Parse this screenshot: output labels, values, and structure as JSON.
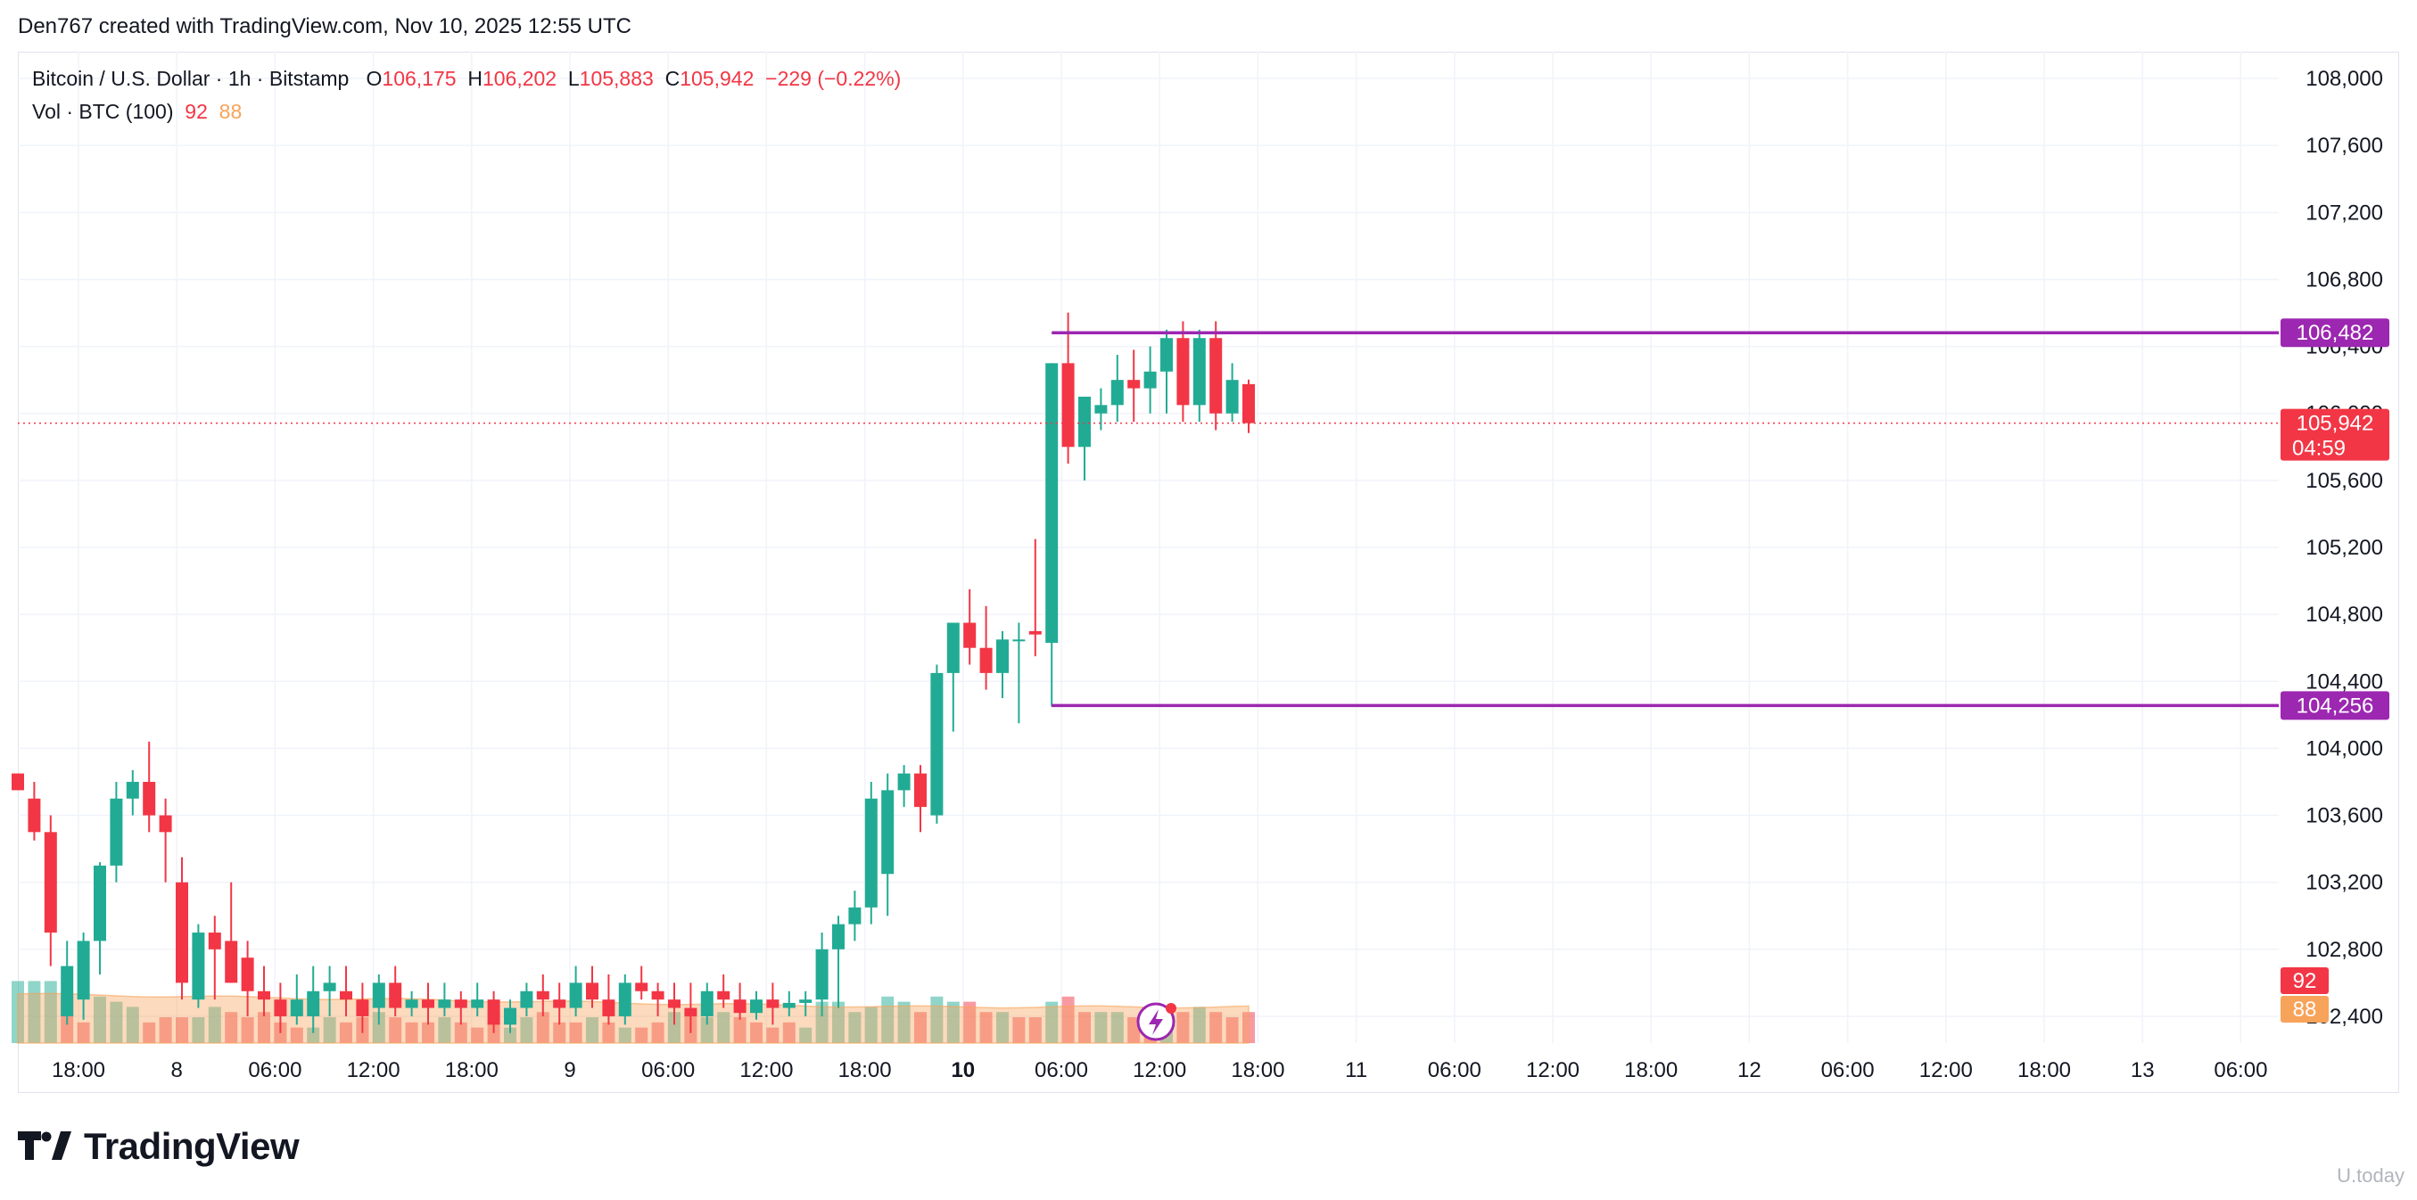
{
  "header": "Den767 created with TradingView.com, Nov 10, 2025 12:55 UTC",
  "legend": {
    "symbol": "Bitcoin / U.S. Dollar · 1h · Bitstamp",
    "o_label": "O",
    "o_value": "106,175",
    "h_label": "H",
    "h_value": "106,202",
    "l_label": "L",
    "l_value": "105,883",
    "c_label": "C",
    "c_value": "105,942",
    "change": "−229 (−0.22%)",
    "vol_label": "Vol · BTC (100)",
    "vol_value1": "92",
    "vol_value2": "88"
  },
  "brand": "TradingView",
  "watermark": "U.today",
  "colors": {
    "up": "#22ab94",
    "down": "#f23645",
    "level_line": "#9c27b0",
    "volume_ma": "#f7a35a",
    "grid": "#f0f3fa"
  },
  "chart_data": {
    "type": "candlestick",
    "interval": "1h",
    "y_axis": {
      "ticks": [
        "108,000",
        "107,600",
        "107,200",
        "106,800",
        "106,400",
        "106,000",
        "105,600",
        "105,200",
        "104,800",
        "104,400",
        "104,000",
        "103,600",
        "103,200",
        "102,800",
        "102,400"
      ],
      "ylim": [
        102240,
        108160
      ]
    },
    "x_axis": {
      "ticks": [
        "18:00",
        "8",
        "06:00",
        "12:00",
        "18:00",
        "9",
        "06:00",
        "12:00",
        "18:00",
        "10",
        "06:00",
        "12:00",
        "18:00",
        "11",
        "06:00",
        "12:00",
        "18:00",
        "12",
        "06:00",
        "12:00",
        "18:00",
        "13",
        "06:00"
      ],
      "bold_tick": "10"
    },
    "price_labels": [
      {
        "label": "106,482",
        "color": "#9c27b0"
      },
      {
        "label": "105,942",
        "sub": "04:59",
        "color": "#f23645"
      },
      {
        "label": "104,256",
        "color": "#9c27b0"
      }
    ],
    "volume_labels": [
      {
        "label": "92",
        "color": "#f23645"
      },
      {
        "label": "88",
        "color": "#f7a35a"
      }
    ],
    "levels": [
      106482,
      104256
    ],
    "last_price": 105942,
    "ohlc": [
      [
        103850,
        103850,
        103750,
        103750
      ],
      [
        103700,
        103800,
        103450,
        103500
      ],
      [
        103500,
        103600,
        102700,
        102900
      ],
      [
        102400,
        102850,
        102350,
        102700
      ],
      [
        102500,
        102900,
        102380,
        102850
      ],
      [
        102850,
        103320,
        102650,
        103300
      ],
      [
        103300,
        103800,
        103200,
        103700
      ],
      [
        103700,
        103870,
        103600,
        103800
      ],
      [
        103800,
        104040,
        103500,
        103600
      ],
      [
        103600,
        103700,
        103200,
        103500
      ],
      [
        103200,
        103350,
        102500,
        102600
      ],
      [
        102500,
        102950,
        102450,
        102900
      ],
      [
        102900,
        103000,
        102500,
        102800
      ],
      [
        102850,
        103200,
        102600,
        102600
      ],
      [
        102750,
        102850,
        102400,
        102550
      ],
      [
        102550,
        102700,
        102400,
        102500
      ],
      [
        102500,
        102600,
        102300,
        102400
      ],
      [
        102400,
        102650,
        102350,
        102500
      ],
      [
        102400,
        102700,
        102300,
        102550
      ],
      [
        102550,
        102700,
        102400,
        102600
      ],
      [
        102550,
        102700,
        102400,
        102500
      ],
      [
        102500,
        102600,
        102300,
        102400
      ],
      [
        102450,
        102650,
        102350,
        102600
      ],
      [
        102600,
        102700,
        102400,
        102450
      ],
      [
        102450,
        102550,
        102400,
        102500
      ],
      [
        102500,
        102600,
        102350,
        102450
      ],
      [
        102450,
        102600,
        102400,
        102500
      ],
      [
        102500,
        102550,
        102350,
        102450
      ],
      [
        102450,
        102600,
        102400,
        102500
      ],
      [
        102500,
        102550,
        102300,
        102350
      ],
      [
        102350,
        102500,
        102300,
        102450
      ],
      [
        102450,
        102600,
        102400,
        102550
      ],
      [
        102550,
        102650,
        102400,
        102500
      ],
      [
        102500,
        102600,
        102350,
        102450
      ],
      [
        102450,
        102700,
        102400,
        102600
      ],
      [
        102600,
        102700,
        102450,
        102500
      ],
      [
        102500,
        102650,
        102350,
        102400
      ],
      [
        102400,
        102650,
        102350,
        102600
      ],
      [
        102600,
        102700,
        102500,
        102550
      ],
      [
        102550,
        102600,
        102400,
        102500
      ],
      [
        102500,
        102600,
        102350,
        102450
      ],
      [
        102450,
        102600,
        102300,
        102400
      ],
      [
        102400,
        102600,
        102350,
        102550
      ],
      [
        102550,
        102650,
        102450,
        102500
      ],
      [
        102500,
        102600,
        102380,
        102420
      ],
      [
        102420,
        102550,
        102380,
        102500
      ],
      [
        102500,
        102600,
        102350,
        102450
      ],
      [
        102450,
        102550,
        102400,
        102480
      ],
      [
        102480,
        102550,
        102400,
        102500
      ],
      [
        102500,
        102900,
        102400,
        102800
      ],
      [
        102800,
        103000,
        102450,
        102950
      ],
      [
        102950,
        103150,
        102850,
        103050
      ],
      [
        103050,
        103800,
        102950,
        103700
      ],
      [
        103250,
        103850,
        103000,
        103750
      ],
      [
        103750,
        103900,
        103650,
        103850
      ],
      [
        103850,
        103900,
        103500,
        103650
      ],
      [
        103600,
        104500,
        103550,
        104450
      ],
      [
        104450,
        104700,
        104100,
        104750
      ],
      [
        104750,
        104950,
        104500,
        104600
      ],
      [
        104600,
        104850,
        104350,
        104450
      ],
      [
        104450,
        104700,
        104300,
        104650
      ],
      [
        104650,
        104750,
        104150,
        104650
      ],
      [
        104700,
        105250,
        104550,
        104680
      ],
      [
        104630,
        106300,
        104250,
        106300
      ],
      [
        106300,
        106602,
        105700,
        105800
      ],
      [
        105800,
        106100,
        105600,
        106100
      ],
      [
        106000,
        106150,
        105900,
        106050
      ],
      [
        106050,
        106350,
        105950,
        106200
      ],
      [
        106200,
        106380,
        105950,
        106150
      ],
      [
        106150,
        106400,
        106000,
        106250
      ],
      [
        106250,
        106500,
        106000,
        106450
      ],
      [
        106450,
        106550,
        105950,
        106050
      ],
      [
        106050,
        106500,
        105950,
        106450
      ],
      [
        106450,
        106550,
        105900,
        106000
      ],
      [
        106000,
        106300,
        105950,
        106200
      ],
      [
        106175,
        106202,
        105883,
        105942
      ]
    ],
    "volume": [
      [
        1.2,
        "up"
      ],
      [
        1.2,
        "up"
      ],
      [
        1.2,
        "up"
      ],
      [
        0.9,
        "down"
      ],
      [
        0.4,
        "down"
      ],
      [
        0.9,
        "up"
      ],
      [
        0.8,
        "up"
      ],
      [
        0.7,
        "up"
      ],
      [
        0.4,
        "down"
      ],
      [
        0.5,
        "down"
      ],
      [
        0.5,
        "down"
      ],
      [
        0.5,
        "up"
      ],
      [
        0.7,
        "up"
      ],
      [
        0.6,
        "down"
      ],
      [
        0.5,
        "down"
      ],
      [
        0.6,
        "down"
      ],
      [
        0.4,
        "down"
      ],
      [
        0.3,
        "down"
      ],
      [
        0.3,
        "up"
      ],
      [
        0.5,
        "up"
      ],
      [
        0.4,
        "down"
      ],
      [
        0.5,
        "down"
      ],
      [
        0.6,
        "up"
      ],
      [
        0.5,
        "down"
      ],
      [
        0.4,
        "down"
      ],
      [
        0.4,
        "down"
      ],
      [
        0.5,
        "up"
      ],
      [
        0.4,
        "down"
      ],
      [
        0.3,
        "down"
      ],
      [
        0.4,
        "down"
      ],
      [
        0.3,
        "up"
      ],
      [
        0.5,
        "up"
      ],
      [
        0.6,
        "down"
      ],
      [
        0.4,
        "down"
      ],
      [
        0.4,
        "down"
      ],
      [
        0.5,
        "up"
      ],
      [
        0.4,
        "down"
      ],
      [
        0.3,
        "up"
      ],
      [
        0.3,
        "down"
      ],
      [
        0.4,
        "down"
      ],
      [
        0.6,
        "up"
      ],
      [
        0.6,
        "down"
      ],
      [
        0.5,
        "up"
      ],
      [
        0.6,
        "up"
      ],
      [
        0.5,
        "down"
      ],
      [
        0.4,
        "down"
      ],
      [
        0.3,
        "down"
      ],
      [
        0.4,
        "down"
      ],
      [
        0.3,
        "up"
      ],
      [
        0.8,
        "up"
      ],
      [
        0.8,
        "up"
      ],
      [
        0.6,
        "up"
      ],
      [
        0.7,
        "up"
      ],
      [
        0.9,
        "up"
      ],
      [
        0.8,
        "up"
      ],
      [
        0.6,
        "down"
      ],
      [
        0.9,
        "up"
      ],
      [
        0.8,
        "up"
      ],
      [
        0.8,
        "down"
      ],
      [
        0.6,
        "down"
      ],
      [
        0.6,
        "up"
      ],
      [
        0.5,
        "down"
      ],
      [
        0.5,
        "down"
      ],
      [
        0.8,
        "up"
      ],
      [
        0.9,
        "down"
      ],
      [
        0.6,
        "down"
      ],
      [
        0.6,
        "up"
      ],
      [
        0.6,
        "up"
      ],
      [
        0.5,
        "down"
      ],
      [
        0.4,
        "down"
      ],
      [
        0.5,
        "up"
      ],
      [
        0.6,
        "down"
      ],
      [
        0.7,
        "up"
      ],
      [
        0.6,
        "down"
      ],
      [
        0.5,
        "down"
      ],
      [
        0.6,
        "down"
      ]
    ]
  }
}
